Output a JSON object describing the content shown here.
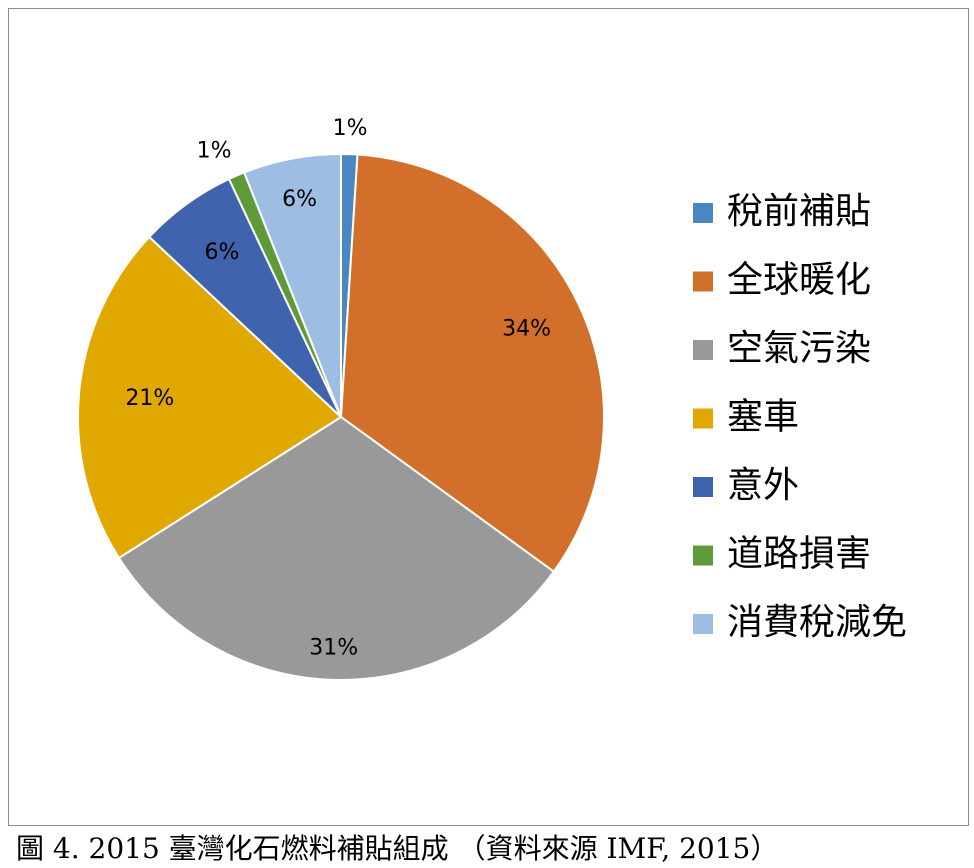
{
  "chart_data": {
    "type": "pie",
    "categories": [
      "稅前補貼",
      "全球暖化",
      "空氣污染",
      "塞車",
      "意外",
      "道路損害",
      "消費稅減免"
    ],
    "values": [
      1,
      34,
      31,
      21,
      6,
      1,
      6
    ],
    "labels": [
      "1%",
      "34%",
      "31%",
      "21%",
      "6%",
      "1%",
      "6%"
    ],
    "colors": [
      "#4a86c0",
      "#d26f2b",
      "#999999",
      "#e0a800",
      "#3f63ad",
      "#5f9a3a",
      "#9dbde3"
    ],
    "legend_position": "right"
  },
  "caption": "圖 4. 2015 臺灣化石燃料補貼組成 （資料來源 IMF, 2015）"
}
